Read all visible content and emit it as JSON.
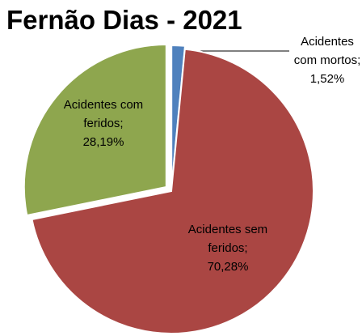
{
  "chart_data": {
    "type": "pie",
    "title": "Fernão Dias - 2021",
    "values": [
      1.52,
      70.28,
      28.19
    ],
    "value_labels": [
      "Acidentes com mortos; 1,52%",
      "Acidentes sem feridos; 70,28%",
      "Acidentes com feridos; 28,19%"
    ],
    "colors": [
      "#4f81bd",
      "#aa4643",
      "#8ea64e"
    ]
  }
}
